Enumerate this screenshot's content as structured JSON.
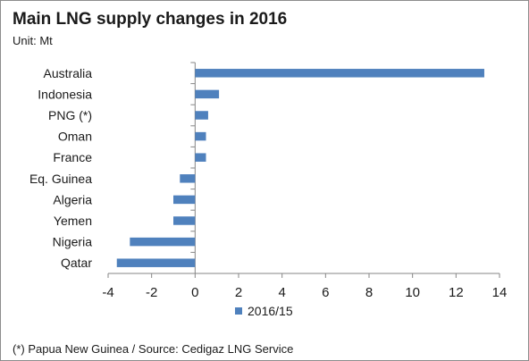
{
  "chart_data": {
    "type": "bar",
    "orientation": "horizontal",
    "title": "Main LNG supply changes in 2016",
    "subtitle": "Unit: Mt",
    "categories": [
      "Australia",
      "Indonesia",
      "PNG (*)",
      "Oman",
      "France",
      "Eq. Guinea",
      "Algeria",
      "Yemen",
      "Nigeria",
      "Qatar"
    ],
    "series": [
      {
        "name": "2016/15",
        "color": "#4f81bd",
        "values": [
          13.3,
          1.1,
          0.6,
          0.5,
          0.5,
          -0.7,
          -1.0,
          -1.0,
          -3.0,
          -3.6
        ]
      }
    ],
    "xlim": [
      -4,
      14
    ],
    "xticks": [
      -4,
      -2,
      0,
      2,
      4,
      6,
      8,
      10,
      12,
      14
    ],
    "grid": false,
    "legend": "bottom",
    "footnote": "(*) Papua New Guinea / Source: Cedigaz LNG Service"
  }
}
